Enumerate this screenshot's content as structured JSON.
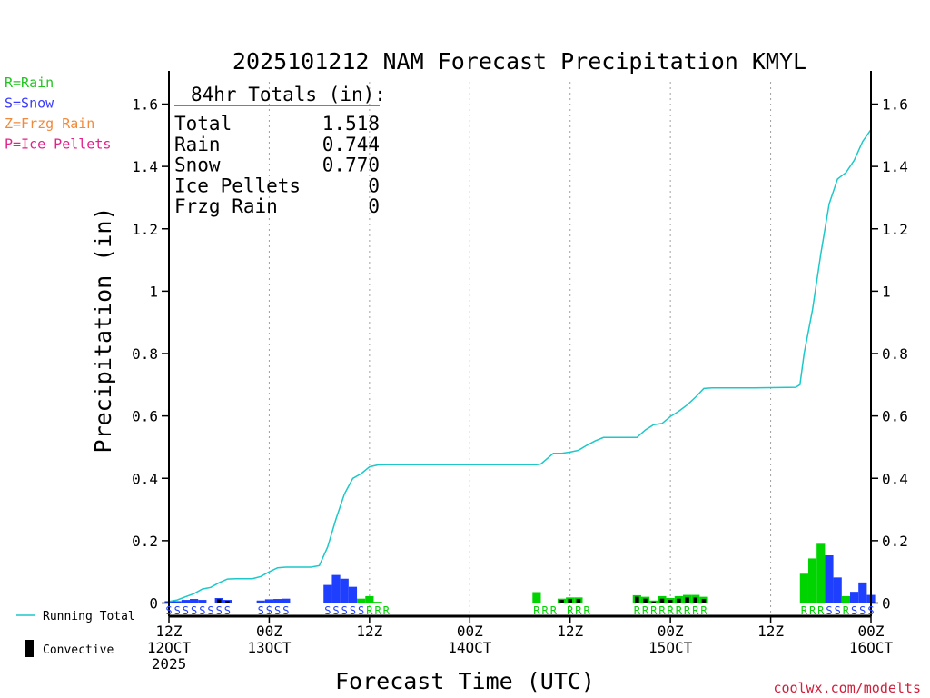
{
  "title": "2025101212 NAM Forecast Precipitation KMYL",
  "legend_types": [
    {
      "label": "R=Rain",
      "color": "#22c322"
    },
    {
      "label": "S=Snow",
      "color": "#3b3bff"
    },
    {
      "label": "Z=Frzg Rain",
      "color": "#f08a3c"
    },
    {
      "label": "P=Ice Pellets",
      "color": "#e0228a"
    }
  ],
  "totals": {
    "header": "84hr Totals (in):",
    "rows": [
      {
        "label": "Total",
        "value": "1.518"
      },
      {
        "label": "Rain",
        "value": "0.744"
      },
      {
        "label": "Snow",
        "value": "0.770"
      },
      {
        "label": "Ice Pellets",
        "value": "0"
      },
      {
        "label": "Frzg Rain",
        "value": "0"
      }
    ]
  },
  "bottom_legend": {
    "running_total": "Running Total",
    "convective": "Convective"
  },
  "credit": "coolwx.com/modelts",
  "colors": {
    "rain": "#00d400",
    "snow": "#1f3fff",
    "running": "#1cc8c8",
    "convective": "#000000",
    "credit": "#d0203c"
  },
  "chart_data": {
    "type": "bar",
    "title": "2025101212 NAM Forecast Precipitation KMYL",
    "xlabel": "Forecast Time (UTC)",
    "ylabel": "Precipitation (in)",
    "ylim": [
      0,
      1.66
    ],
    "xlim": [
      0,
      84
    ],
    "y_ticks": [
      0,
      0.2,
      0.4,
      0.6,
      0.8,
      1,
      1.2,
      1.4,
      1.6
    ],
    "y_tick_labels": [
      "0",
      "0.2",
      "0.4",
      "0.6",
      "0.8",
      "1",
      "1.2",
      "1.4",
      "1.6"
    ],
    "x_ticks": [
      {
        "hour": 0,
        "lines": [
          "12Z",
          "12OCT",
          "2025"
        ]
      },
      {
        "hour": 12,
        "lines": [
          "00Z",
          "13OCT"
        ]
      },
      {
        "hour": 24,
        "lines": [
          "12Z"
        ]
      },
      {
        "hour": 36,
        "lines": [
          "00Z",
          "14OCT"
        ]
      },
      {
        "hour": 48,
        "lines": [
          "12Z"
        ]
      },
      {
        "hour": 60,
        "lines": [
          "00Z",
          "15OCT"
        ]
      },
      {
        "hour": 72,
        "lines": [
          "12Z"
        ]
      },
      {
        "hour": 84,
        "lines": [
          "00Z",
          "16OCT"
        ]
      }
    ],
    "bars": [
      {
        "hour": 0,
        "type": "snow",
        "value": 0.006,
        "conv": 0
      },
      {
        "hour": 1,
        "type": "snow",
        "value": 0.006,
        "conv": 0
      },
      {
        "hour": 2,
        "type": "snow",
        "value": 0.01,
        "conv": 0
      },
      {
        "hour": 3,
        "type": "snow",
        "value": 0.013,
        "conv": 0
      },
      {
        "hour": 4,
        "type": "snow",
        "value": 0.01,
        "conv": 0
      },
      {
        "hour": 5,
        "type": "snow",
        "value": 0.0,
        "conv": 0
      },
      {
        "hour": 6,
        "type": "snow",
        "value": 0.016,
        "conv": 0.012
      },
      {
        "hour": 7,
        "type": "snow",
        "value": 0.01,
        "conv": 0.007
      },
      {
        "hour": 11,
        "type": "snow",
        "value": 0.008,
        "conv": 0
      },
      {
        "hour": 12,
        "type": "snow",
        "value": 0.012,
        "conv": 0
      },
      {
        "hour": 13,
        "type": "snow",
        "value": 0.013,
        "conv": 0
      },
      {
        "hour": 14,
        "type": "snow",
        "value": 0.014,
        "conv": 0
      },
      {
        "hour": 19,
        "type": "snow",
        "value": 0.058,
        "conv": 0
      },
      {
        "hour": 20,
        "type": "snow",
        "value": 0.09,
        "conv": 0
      },
      {
        "hour": 21,
        "type": "snow",
        "value": 0.078,
        "conv": 0
      },
      {
        "hour": 22,
        "type": "snow",
        "value": 0.052,
        "conv": 0
      },
      {
        "hour": 23,
        "type": "rain",
        "value": 0.014,
        "conv": 0
      },
      {
        "hour": 24,
        "type": "rain",
        "value": 0.022,
        "conv": 0
      },
      {
        "hour": 25,
        "type": "rain",
        "value": 0.004,
        "conv": 0
      },
      {
        "hour": 44,
        "type": "rain",
        "value": 0.035,
        "conv": 0
      },
      {
        "hour": 47,
        "type": "rain",
        "value": 0.014,
        "conv": 0.01
      },
      {
        "hour": 48,
        "type": "rain",
        "value": 0.018,
        "conv": 0.013
      },
      {
        "hour": 49,
        "type": "rain",
        "value": 0.018,
        "conv": 0.013
      },
      {
        "hour": 56,
        "type": "rain",
        "value": 0.025,
        "conv": 0.02
      },
      {
        "hour": 57,
        "type": "rain",
        "value": 0.02,
        "conv": 0.014
      },
      {
        "hour": 58,
        "type": "rain",
        "value": 0.008,
        "conv": 0.005
      },
      {
        "hour": 59,
        "type": "rain",
        "value": 0.022,
        "conv": 0.014
      },
      {
        "hour": 60,
        "type": "rain",
        "value": 0.016,
        "conv": 0.01
      },
      {
        "hour": 61,
        "type": "rain",
        "value": 0.022,
        "conv": 0.014
      },
      {
        "hour": 62,
        "type": "rain",
        "value": 0.026,
        "conv": 0.018
      },
      {
        "hour": 63,
        "type": "rain",
        "value": 0.026,
        "conv": 0.018
      },
      {
        "hour": 64,
        "type": "rain",
        "value": 0.02,
        "conv": 0.013
      },
      {
        "hour": 76,
        "type": "rain",
        "value": 0.094,
        "conv": 0
      },
      {
        "hour": 77,
        "type": "rain",
        "value": 0.143,
        "conv": 0
      },
      {
        "hour": 78,
        "type": "rain",
        "value": 0.19,
        "conv": 0
      },
      {
        "hour": 79,
        "type": "snow",
        "value": 0.153,
        "conv": 0
      },
      {
        "hour": 80,
        "type": "snow",
        "value": 0.082,
        "conv": 0
      },
      {
        "hour": 81,
        "type": "rain",
        "value": 0.022,
        "conv": 0
      },
      {
        "hour": 82,
        "type": "snow",
        "value": 0.036,
        "conv": 0
      },
      {
        "hour": 83,
        "type": "snow",
        "value": 0.066,
        "conv": 0
      },
      {
        "hour": 84,
        "type": "snow",
        "value": 0.026,
        "conv": 0
      }
    ],
    "running_total": {
      "x": [
        0,
        1,
        2,
        3,
        4,
        5,
        6,
        7,
        8,
        9,
        10,
        11,
        12,
        13,
        14,
        15,
        16,
        17,
        18,
        19,
        20,
        21,
        22,
        23,
        24,
        25,
        26,
        30,
        44,
        44.5,
        46,
        47,
        48,
        49,
        50,
        51,
        52,
        56,
        57,
        58,
        59,
        60,
        61,
        62,
        63,
        64,
        65,
        66,
        70,
        75,
        75.5,
        76,
        77,
        78,
        79,
        80,
        81,
        82,
        83,
        84
      ],
      "y": [
        0.005,
        0.01,
        0.02,
        0.03,
        0.045,
        0.05,
        0.065,
        0.077,
        0.078,
        0.078,
        0.078,
        0.085,
        0.1,
        0.113,
        0.115,
        0.115,
        0.115,
        0.115,
        0.12,
        0.18,
        0.27,
        0.35,
        0.4,
        0.415,
        0.437,
        0.443,
        0.444,
        0.444,
        0.444,
        0.446,
        0.48,
        0.48,
        0.484,
        0.49,
        0.506,
        0.52,
        0.531,
        0.531,
        0.555,
        0.572,
        0.576,
        0.598,
        0.615,
        0.635,
        0.66,
        0.688,
        0.69,
        0.69,
        0.69,
        0.692,
        0.7,
        0.8,
        0.94,
        1.12,
        1.28,
        1.36,
        1.38,
        1.42,
        1.48,
        1.518
      ]
    },
    "type_label_rows": [
      {
        "start": 0,
        "text": "SSSSSSSS",
        "type": "snow"
      },
      {
        "start": 11,
        "text": "SSSS",
        "type": "snow"
      },
      {
        "start": 19,
        "text": "SSSSS",
        "type": "snow"
      },
      {
        "start": 24,
        "text": "RRR",
        "type": "rain"
      },
      {
        "start": 44,
        "text": "RRR",
        "type": "rain"
      },
      {
        "start": 48,
        "text": "RRR",
        "type": "rain"
      },
      {
        "start": 56,
        "text": "RRRRRRRRR",
        "type": "rain"
      },
      {
        "start": 76,
        "text": "RRR",
        "type": "rain"
      },
      {
        "start": 79,
        "text": "SSRSSS",
        "type": "mixed"
      }
    ]
  }
}
